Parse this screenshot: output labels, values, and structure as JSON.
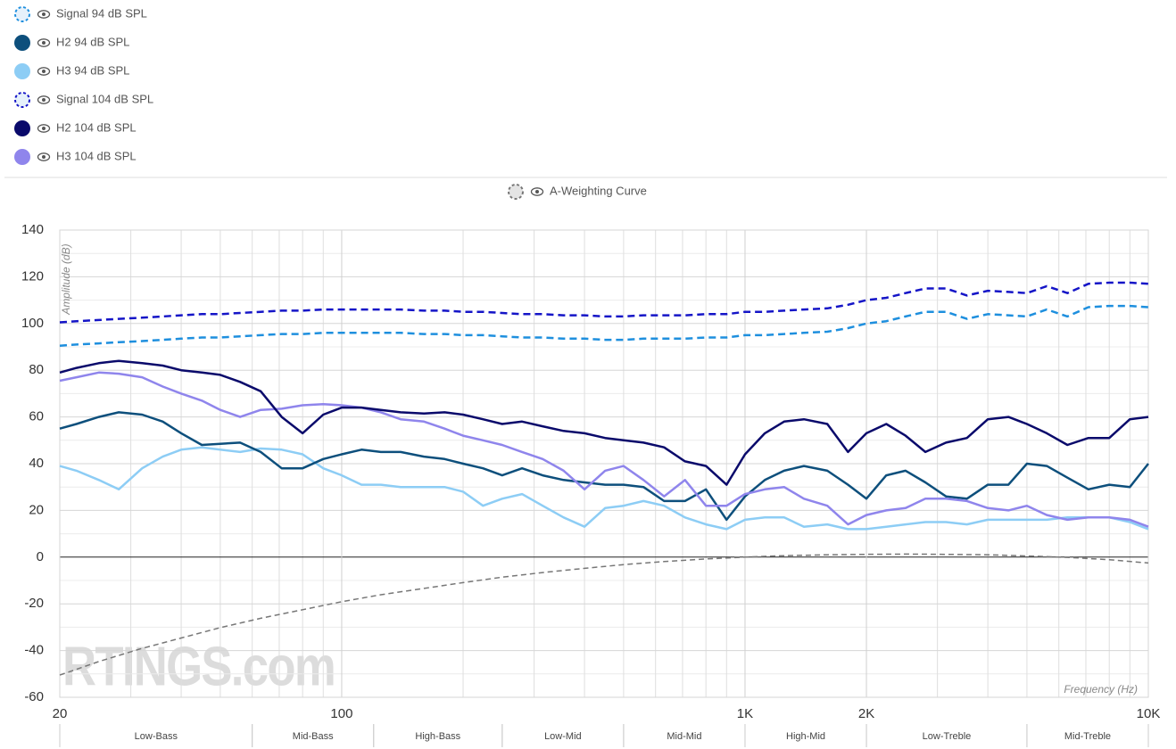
{
  "chart_data": {
    "type": "line",
    "x_label": "Frequency (Hz)",
    "y_label": "Amplitude (dB)",
    "watermark": "RTINGS.com",
    "xscale": "log",
    "grid": true,
    "xlim": [
      20,
      10000
    ],
    "ylim": [
      -60,
      140
    ],
    "xticks": [
      20,
      100,
      {
        "value": 1000,
        "label": "1K"
      },
      {
        "value": 2000,
        "label": "2K"
      },
      {
        "value": 10000,
        "label": "10K"
      }
    ],
    "xminorticks": [
      30,
      40,
      50,
      60,
      70,
      80,
      90,
      200,
      300,
      400,
      500,
      600,
      700,
      800,
      900,
      3000,
      4000,
      5000,
      6000,
      7000,
      8000,
      9000
    ],
    "yticks": [
      -60,
      -40,
      -20,
      0,
      20,
      40,
      60,
      80,
      100,
      120,
      140
    ],
    "yminorticks": [
      -50,
      -30,
      -10,
      10,
      30,
      50,
      70,
      90,
      110,
      130
    ],
    "bands": [
      {
        "label": "Low-Bass",
        "from": 20,
        "to": 60
      },
      {
        "label": "Mid-Bass",
        "from": 60,
        "to": 120
      },
      {
        "label": "High-Bass",
        "from": 120,
        "to": 250
      },
      {
        "label": "Low-Mid",
        "from": 250,
        "to": 500
      },
      {
        "label": "Mid-Mid",
        "from": 500,
        "to": 1000
      },
      {
        "label": "High-Mid",
        "from": 1000,
        "to": 2000
      },
      {
        "label": "Low-Treble",
        "from": 2000,
        "to": 5000
      },
      {
        "label": "Mid-Treble",
        "from": 5000,
        "to": 10000
      }
    ],
    "x": [
      20,
      22,
      25,
      28,
      32,
      36,
      40,
      45,
      50,
      56,
      63,
      71,
      80,
      90,
      100,
      112,
      125,
      140,
      160,
      180,
      200,
      224,
      250,
      280,
      315,
      355,
      400,
      450,
      500,
      560,
      630,
      710,
      800,
      900,
      1000,
      1120,
      1250,
      1400,
      1600,
      1800,
      2000,
      2240,
      2500,
      2800,
      3150,
      3550,
      4000,
      4500,
      5000,
      5600,
      6300,
      7100,
      8000,
      9000,
      10000
    ],
    "series": [
      {
        "name": "Signal 94 dB SPL",
        "color": "#1e8fde",
        "dashed": true,
        "values": [
          90.5,
          91,
          91.5,
          92,
          92.5,
          93,
          93.5,
          94,
          94,
          94.5,
          95,
          95.5,
          95.5,
          96,
          96,
          96,
          96,
          96,
          95.5,
          95.5,
          95,
          95,
          94.5,
          94,
          94,
          93.5,
          93.5,
          93,
          93,
          93.5,
          93.5,
          93.5,
          94,
          94,
          95,
          95,
          95.5,
          96,
          96.5,
          98,
          100,
          101,
          103,
          105,
          105,
          102,
          104,
          103.5,
          103,
          106,
          103,
          107,
          107.5,
          107.5,
          107
        ]
      },
      {
        "name": "H2 94 dB SPL",
        "color": "#0d4f7c",
        "values": [
          55,
          57,
          60,
          62,
          61,
          58,
          53,
          48,
          48.5,
          49,
          45,
          38,
          38,
          42,
          44,
          46,
          45,
          45,
          43,
          42,
          40,
          38,
          35,
          38,
          35,
          33,
          32,
          31,
          31,
          30,
          24,
          24,
          29,
          16,
          26,
          33,
          37,
          39,
          37,
          31,
          25,
          35,
          37,
          32,
          26,
          25,
          31,
          31,
          40,
          39,
          34,
          29,
          31,
          30,
          40
        ]
      },
      {
        "name": "H3 94 dB SPL",
        "color": "#8dcdf5",
        "values": [
          39,
          37,
          33,
          29,
          38,
          43,
          46,
          47,
          46,
          45,
          46.5,
          46,
          44,
          38,
          35,
          31,
          31,
          30,
          30,
          30,
          28,
          22,
          25,
          27,
          22,
          17,
          13,
          21,
          22,
          24,
          22,
          17,
          14,
          12,
          16,
          17,
          17,
          13,
          14,
          12,
          12,
          13,
          14,
          15,
          15,
          14,
          16,
          16,
          16,
          16,
          17,
          17,
          17,
          15,
          12
        ]
      },
      {
        "name": "Signal 104 dB SPL",
        "color": "#1515c7",
        "dashed": true,
        "values": [
          100.5,
          101,
          101.5,
          102,
          102.5,
          103,
          103.5,
          104,
          104,
          104.5,
          105,
          105.5,
          105.5,
          106,
          106,
          106,
          106,
          106,
          105.5,
          105.5,
          105,
          105,
          104.5,
          104,
          104,
          103.5,
          103.5,
          103,
          103,
          103.5,
          103.5,
          103.5,
          104,
          104,
          105,
          105,
          105.5,
          106,
          106.5,
          108,
          110,
          111,
          113,
          115,
          115,
          112,
          114,
          113.5,
          113,
          116,
          113,
          117,
          117.5,
          117.5,
          117
        ]
      },
      {
        "name": "H2 104 dB SPL",
        "color": "#0a0a6b",
        "values": [
          79,
          81,
          83,
          84,
          83,
          82,
          80,
          79,
          78,
          75,
          71,
          60,
          53,
          61,
          64,
          64,
          63,
          62,
          61.5,
          62,
          61,
          59,
          57,
          58,
          56,
          54,
          53,
          51,
          50,
          49,
          47,
          41,
          39,
          31,
          44,
          53,
          58,
          59,
          57,
          45,
          53,
          57,
          52,
          45,
          49,
          51,
          59,
          60,
          57,
          53,
          48,
          51,
          51,
          59,
          60
        ]
      },
      {
        "name": "H3 104 dB SPL",
        "color": "#8f85ec",
        "values": [
          75.5,
          77,
          79,
          78.5,
          77,
          73,
          70,
          67,
          63,
          60,
          63,
          63.5,
          65,
          65.5,
          65,
          64,
          62,
          59,
          58,
          55,
          52,
          50,
          48,
          45,
          42,
          37,
          29,
          37,
          39,
          33,
          26,
          33,
          22,
          22,
          27,
          29,
          30,
          25,
          22,
          14,
          18,
          20,
          21,
          25,
          25,
          24,
          21,
          20,
          22,
          18,
          16,
          17,
          17,
          16,
          13
        ]
      },
      {
        "name": "A-Weighting Curve",
        "color": "#777777",
        "dashed": true,
        "standalone": true,
        "x": [
          20,
          25,
          31.5,
          40,
          50,
          63,
          80,
          100,
          125,
          160,
          200,
          250,
          315,
          400,
          500,
          630,
          800,
          1000,
          1250,
          1600,
          2000,
          2500,
          3150,
          4000,
          5000,
          6300,
          8000,
          10000
        ],
        "values": [
          -50.5,
          -44.7,
          -39.4,
          -34.6,
          -30.2,
          -26.2,
          -22.5,
          -19.1,
          -16.1,
          -13.4,
          -10.9,
          -8.6,
          -6.6,
          -4.8,
          -3.2,
          -1.9,
          -0.8,
          0,
          0.6,
          1,
          1.2,
          1.3,
          1.2,
          1,
          0.5,
          -0.1,
          -1.1,
          -2.5
        ]
      }
    ]
  }
}
